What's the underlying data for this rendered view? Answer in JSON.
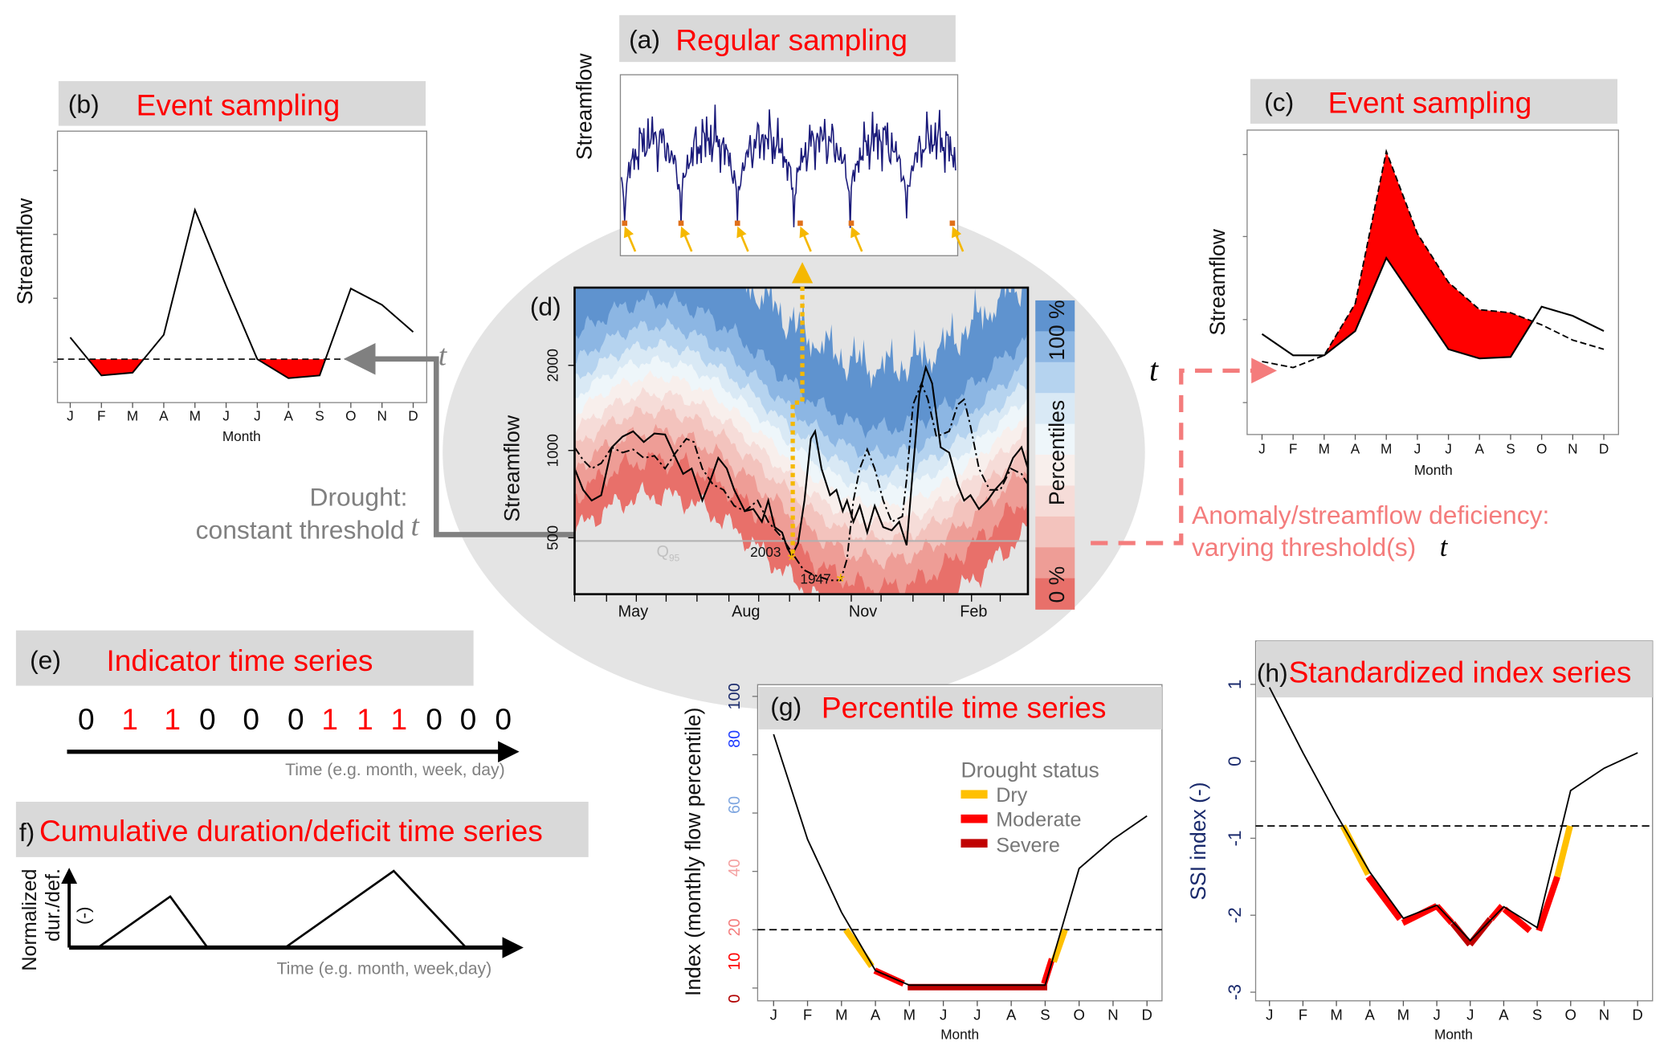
{
  "panel_a": {
    "label": "(a)",
    "title": "Regular sampling",
    "ylabel": "Streamflow"
  },
  "panel_b": {
    "label": "(b)",
    "title": "Event sampling",
    "ylabel": "Streamflow",
    "xlabel": "Month",
    "months": [
      "J",
      "F",
      "M",
      "A",
      "M",
      "J",
      "J",
      "A",
      "S",
      "O",
      "N",
      "D"
    ],
    "annotation_line1": "Drought:",
    "annotation_line2": "constant threshold",
    "threshold_symbol": "t"
  },
  "panel_c": {
    "label": "(c)",
    "title": "Event sampling",
    "ylabel": "Streamflow",
    "xlabel": "Month",
    "months": [
      "J",
      "F",
      "M",
      "A",
      "M",
      "J",
      "J",
      "A",
      "S",
      "O",
      "N",
      "D"
    ],
    "annotation_line1": "Anomaly/streamflow deficiency:",
    "annotation_line2": "varying threshold(s)",
    "threshold_symbol": "t"
  },
  "panel_d": {
    "label": "(d)",
    "ylabel": "Streamflow",
    "yticks": [
      "2000",
      "1000",
      "500"
    ],
    "xticks": [
      "May",
      "Aug",
      "Nov",
      "Feb"
    ],
    "q95_label": "Q",
    "q95_sub": "95",
    "year_labels": [
      "2003",
      "1947"
    ],
    "colorbar": {
      "top": "100 %",
      "middle": "Percentiles",
      "bottom": "0 %",
      "colors": [
        "#5f93cf",
        "#8cb6e3",
        "#b5d3ef",
        "#d9e9f5",
        "#eef6fa",
        "#f8efec",
        "#f6dcd8",
        "#f3c3bd",
        "#ee9d96",
        "#e8706a"
      ]
    }
  },
  "panel_e": {
    "label": "(e)",
    "title": "Indicator time series",
    "values": [
      0,
      1,
      1,
      0,
      0,
      0,
      1,
      1,
      1,
      0,
      0,
      0
    ],
    "xlabel": "Time (e.g. month, week, day)"
  },
  "panel_f": {
    "label": "f)",
    "title": "Cumulative duration/deficit time series",
    "ylabel_lines": [
      "Normalized",
      "dur./def.",
      "(-)"
    ],
    "xlabel": "Time (e.g. month, week,day)"
  },
  "panel_g": {
    "label": "(g)",
    "title": "Percentile time series",
    "ylabel": "Index (monthly flow percentile)",
    "xlabel": "Month",
    "months": [
      "J",
      "F",
      "M",
      "A",
      "M",
      "J",
      "J",
      "A",
      "S",
      "O",
      "N",
      "D"
    ],
    "yticks": [
      {
        "label": "100",
        "color": "#1a2a6c"
      },
      {
        "label": "80",
        "color": "#1f3cff"
      },
      {
        "label": "60",
        "color": "#7ea6e0"
      },
      {
        "label": "40",
        "color": "#f4a0a0"
      },
      {
        "label": "20",
        "color": "#f47c7c"
      },
      {
        "label": "10",
        "color": "#ff0000"
      },
      {
        "label": "0",
        "color": "#b00000"
      }
    ],
    "legend": {
      "title": "Drought status",
      "items": [
        {
          "label": "Dry",
          "color": "#ffc000"
        },
        {
          "label": "Moderate",
          "color": "#ff0000"
        },
        {
          "label": "Severe",
          "color": "#c00000"
        }
      ]
    }
  },
  "panel_h": {
    "label": "(h)",
    "title": "Standardized index series",
    "ylabel": "SSI index (-)",
    "xlabel": "Month",
    "months": [
      "J",
      "F",
      "M",
      "A",
      "M",
      "J",
      "J",
      "A",
      "S",
      "O",
      "N",
      "D"
    ],
    "yticks": [
      "1",
      "0",
      "-1",
      "-2",
      "-3"
    ]
  },
  "colors": {
    "title_red": "#ff0000",
    "header_grey": "#d9d9d9",
    "ellipse_grey": "#e4e4e4",
    "dry": "#ffc000",
    "moderate": "#ff0000",
    "severe": "#c00000",
    "constant_arrow": "#808080",
    "varying_arrow": "#f47c7c",
    "sampling_arrow": "#f5b800",
    "series_navy": "#1a1a7a"
  },
  "chart_data": [
    {
      "type": "line",
      "panel": "b",
      "categories": [
        "J",
        "F",
        "M",
        "A",
        "M",
        "J",
        "J",
        "A",
        "S",
        "O",
        "N",
        "D"
      ],
      "series": [
        {
          "values": [
            24,
            10,
            11,
            25,
            71,
            43,
            16,
            9,
            10,
            42,
            36,
            26
          ]
        }
      ],
      "threshold": 16,
      "xlabel": "Month",
      "ylabel": "Streamflow",
      "ylim": [
        0,
        100
      ]
    },
    {
      "type": "line",
      "panel": "c",
      "categories": [
        "J",
        "F",
        "M",
        "A",
        "M",
        "J",
        "J",
        "A",
        "S",
        "O",
        "N",
        "D"
      ],
      "series": [
        {
          "values": [
            33,
            26,
            26,
            34,
            58,
            43,
            28,
            25,
            25.5,
            42,
            39,
            34
          ]
        },
        {
          "values": [
            24,
            22,
            26,
            43,
            93,
            66,
            50,
            41,
            40,
            36,
            31,
            28
          ]
        }
      ],
      "xlabel": "Month",
      "ylabel": "Streamflow",
      "ylim": [
        0,
        100
      ]
    },
    {
      "type": "line",
      "panel": "g",
      "categories": [
        "J",
        "F",
        "M",
        "A",
        "M",
        "J",
        "J",
        "A",
        "S",
        "O",
        "N",
        "D"
      ],
      "series": [
        {
          "values": [
            87,
            51,
            26,
            6,
            1,
            1,
            1,
            1,
            1,
            41,
            51,
            59
          ]
        }
      ],
      "threshold": 20,
      "ylim": [
        0,
        100
      ],
      "xlabel": "Month",
      "ylabel": "Index (monthly flow percentile)",
      "drought_segments": [
        {
          "status": "Dry",
          "from": [
            2.13,
            20
          ],
          "to": [
            2.89,
            7.5
          ]
        },
        {
          "status": "Moderate",
          "from": [
            2.98,
            6
          ],
          "to": [
            3.83,
            1.5
          ]
        },
        {
          "status": "Severe",
          "from": [
            3.95,
            0.3
          ],
          "to": [
            8.06,
            0.3
          ]
        },
        {
          "status": "Moderate",
          "from": [
            7.97,
            1.5
          ],
          "to": [
            8.2,
            10
          ]
        },
        {
          "status": "Dry",
          "from": [
            8.25,
            9
          ],
          "to": [
            8.58,
            20
          ]
        }
      ]
    },
    {
      "type": "line",
      "panel": "h",
      "categories": [
        "J",
        "F",
        "M",
        "A",
        "M",
        "J",
        "J",
        "A",
        "S",
        "O",
        "N",
        "D"
      ],
      "series": [
        {
          "values": [
            0.96,
            0.11,
            -0.69,
            -1.44,
            -2.04,
            -1.87,
            -2.33,
            -1.89,
            -2.16,
            -0.38,
            -0.09,
            0.11
          ]
        }
      ],
      "threshold": -0.84,
      "ylim": [
        -3.15,
        1.15
      ],
      "xlabel": "Month",
      "ylabel": "SSI index (-)",
      "drought_segments": [
        {
          "status": "Dry",
          "from": [
            2.2,
            -0.84
          ],
          "to": [
            2.95,
            -1.47
          ]
        },
        {
          "status": "Moderate",
          "from": [
            2.95,
            -1.5
          ],
          "to": [
            3.9,
            -2.05
          ]
        },
        {
          "status": "Moderate",
          "from": [
            3.98,
            -2.1
          ],
          "to": [
            5.0,
            -1.88
          ]
        },
        {
          "status": "Moderate",
          "from": [
            5.0,
            -1.88
          ],
          "to": [
            5.45,
            -2.1
          ]
        },
        {
          "status": "Severe",
          "from": [
            5.47,
            -2.1
          ],
          "to": [
            5.99,
            -2.38
          ]
        },
        {
          "status": "Severe",
          "from": [
            5.99,
            -2.38
          ],
          "to": [
            6.6,
            -2.05
          ]
        },
        {
          "status": "Moderate",
          "from": [
            6.62,
            -2.05
          ],
          "to": [
            6.95,
            -1.88
          ]
        },
        {
          "status": "Moderate",
          "from": [
            7.02,
            -1.92
          ],
          "to": [
            7.78,
            -2.2
          ]
        },
        {
          "status": "Moderate",
          "from": [
            8.05,
            -2.2
          ],
          "to": [
            8.6,
            -1.5
          ]
        },
        {
          "status": "Dry",
          "from": [
            8.6,
            -1.5
          ],
          "to": [
            8.98,
            -0.84
          ]
        }
      ]
    }
  ]
}
